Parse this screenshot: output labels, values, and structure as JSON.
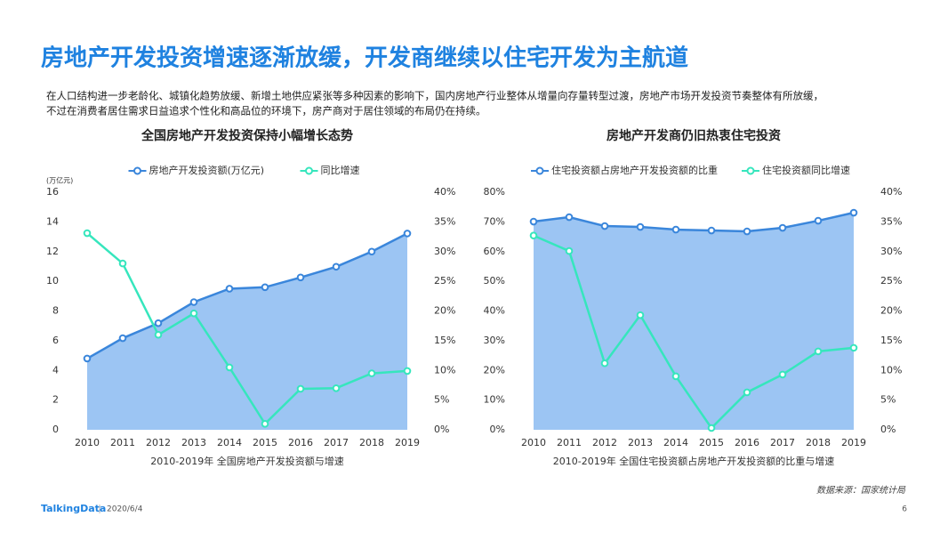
{
  "header": {
    "title": "房地产开发投资增速逐渐放缓，开发商继续以住宅开发为主航道",
    "text": [
      "在人口结构进一步老龄化、城镇化趋势放缓、新增土地供应紧张等多种因素的影响下，国内房地产行业整体从增量向存量转型过渡，房地产市场开发投资节奏整体有所放缓，",
      "不过在消费者居住需求日益追求个性化和高品位的环境下，房产商对于居住领域的布局仍在持续。"
    ]
  },
  "chart_data": [
    {
      "type": "line",
      "title": "全国房地产开发投资保持小幅增长态势",
      "unit_label": "(万亿元)",
      "caption": "2010-2019年  全国房地产开发投资额与增速",
      "legend": "top",
      "categories": [
        "2010",
        "2011",
        "2012",
        "2013",
        "2014",
        "2015",
        "2016",
        "2017",
        "2018",
        "2019"
      ],
      "series": [
        {
          "name": "房地产开发投资额(万亿元)",
          "color": "#3a86db",
          "area_color": "#9cc5f3",
          "area": true,
          "values": [
            4.8,
            6.17,
            7.18,
            8.6,
            9.5,
            9.6,
            10.26,
            10.98,
            12.0,
            13.22
          ]
        },
        {
          "name": "同比增速",
          "color": "#36e6bd",
          "axis": "y2",
          "values": [
            33.1,
            28.0,
            16.0,
            19.6,
            10.5,
            1.0,
            6.9,
            7.0,
            9.5,
            9.9
          ]
        }
      ],
      "ylim": [
        0,
        16
      ],
      "yticks": [
        0,
        2,
        4,
        6,
        8,
        10,
        12,
        14,
        16
      ],
      "y2lim": [
        0,
        40
      ],
      "y2ticks": [
        {
          "value": 0,
          "label": "0%"
        },
        {
          "value": 5,
          "label": "5%"
        },
        {
          "value": 10,
          "label": "10%"
        },
        {
          "value": 15,
          "label": "15%"
        },
        {
          "value": 20,
          "label": "20%"
        },
        {
          "value": 25,
          "label": "25%"
        },
        {
          "value": 30,
          "label": "30%"
        },
        {
          "value": 35,
          "label": "35%"
        },
        {
          "value": 40,
          "label": "40%"
        }
      ]
    },
    {
      "type": "line",
      "title": "房地产开发商仍旧热衷住宅投资",
      "caption": "2010-2019年  全国住宅投资额占房地产开发投资额的比重与增速",
      "legend": "top",
      "categories": [
        "2010",
        "2011",
        "2012",
        "2013",
        "2014",
        "2015",
        "2016",
        "2017",
        "2018",
        "2019"
      ],
      "series": [
        {
          "name": "住宅投资额占房地产开发投资额的比重",
          "color": "#3a86db",
          "area_color": "#9cc5f3",
          "area": true,
          "values": [
            70.1,
            71.6,
            68.6,
            68.3,
            67.4,
            67.1,
            66.8,
            68.0,
            70.4,
            73.1
          ]
        },
        {
          "name": "住宅投资额同比增速",
          "color": "#36e6bd",
          "axis": "y2",
          "values": [
            32.7,
            30.1,
            11.2,
            19.3,
            9.0,
            0.3,
            6.3,
            9.3,
            13.2,
            13.8
          ]
        }
      ],
      "ylim": [
        0,
        80
      ],
      "yticks": [
        {
          "value": 0,
          "label": "0%"
        },
        {
          "value": 10,
          "label": "10%"
        },
        {
          "value": 20,
          "label": "20%"
        },
        {
          "value": 30,
          "label": "30%"
        },
        {
          "value": 40,
          "label": "40%"
        },
        {
          "value": 50,
          "label": "50%"
        },
        {
          "value": 60,
          "label": "60%"
        },
        {
          "value": 70,
          "label": "70%"
        },
        {
          "value": 80,
          "label": "80%"
        }
      ],
      "y2lim": [
        0,
        40
      ],
      "y2ticks": [
        {
          "value": 0,
          "label": "0%"
        },
        {
          "value": 5,
          "label": "5%"
        },
        {
          "value": 10,
          "label": "10%"
        },
        {
          "value": 15,
          "label": "15%"
        },
        {
          "value": 20,
          "label": "20%"
        },
        {
          "value": 25,
          "label": "25%"
        },
        {
          "value": 30,
          "label": "30%"
        },
        {
          "value": 35,
          "label": "35%"
        },
        {
          "value": 40,
          "label": "40%"
        }
      ]
    }
  ],
  "footer": {
    "source": "数据来源：国家统计局",
    "logo": "TalkingData",
    "date": "2020/6/4",
    "page": "6"
  }
}
